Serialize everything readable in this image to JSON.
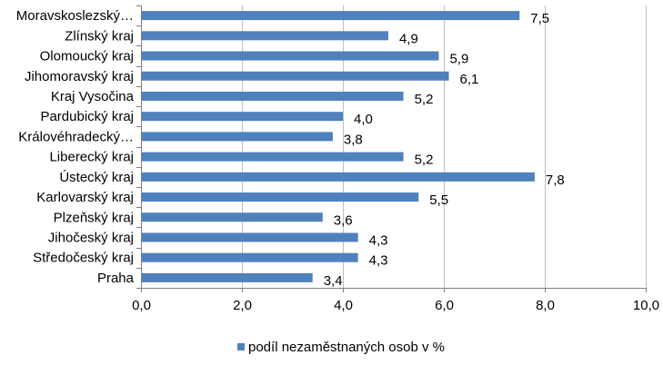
{
  "chart_data": {
    "type": "bar",
    "orientation": "horizontal",
    "categories": [
      "Moravskoslezský…",
      "Zlínský kraj",
      "Olomoucký kraj",
      "Jihomoravský kraj",
      "Kraj Vysočina",
      "Pardubický kraj",
      "Královéhradecký…",
      "Liberecký kraj",
      "Ústecký kraj",
      "Karlovarský kraj",
      "Plzeňský kraj",
      "Jihočeský kraj",
      "Středočeský kraj",
      "Praha"
    ],
    "series": [
      {
        "name": "podíl nezaměstnaných osob v %",
        "color": "#4f81bd",
        "values": [
          7.5,
          4.9,
          5.9,
          6.1,
          5.2,
          4.0,
          3.8,
          5.2,
          7.8,
          5.5,
          3.6,
          4.3,
          4.3,
          3.4
        ],
        "value_labels": [
          "7,5",
          "4,9",
          "5,9",
          "6,1",
          "5,2",
          "4,0",
          "3,8",
          "5,2",
          "7,8",
          "5,5",
          "3,6",
          "4,3",
          "4,3",
          "3,4"
        ]
      }
    ],
    "xlim": [
      0,
      10
    ],
    "x_ticks": [
      0,
      2,
      4,
      6,
      8,
      10
    ],
    "x_tick_labels": [
      "0,0",
      "2,0",
      "4,0",
      "6,0",
      "8,0",
      "10,0"
    ],
    "grid": "vertical",
    "legend": "bottom",
    "title": "",
    "xlabel": "",
    "ylabel": ""
  }
}
